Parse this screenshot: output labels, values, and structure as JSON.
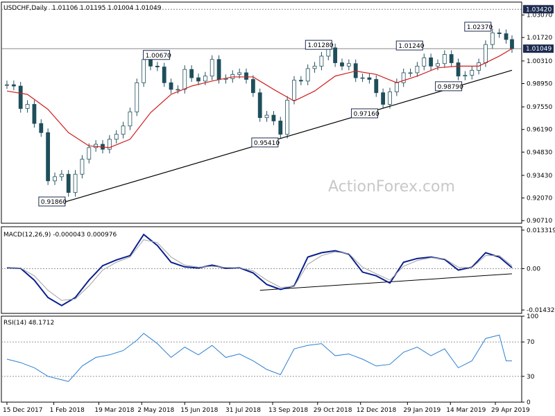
{
  "header": {
    "symbol": "USDCHF,Daily",
    "ohlc": "1.01106 1.01195 1.01004 1.01049",
    "watermark": "ActionForex.com"
  },
  "colors": {
    "candle": "#1f4e5b",
    "ma": "#d11e1e",
    "macd": "#0a1f8f",
    "signal": "#a0a0a0",
    "rsi": "#2a7fd4",
    "trend": "#000000",
    "grid": "#000000"
  },
  "chart_data": [
    {
      "type": "candlestick",
      "title": "USDCHF,Daily",
      "y_ticks": [
        "1.03070",
        "1.01720",
        "1.00310",
        "0.98950",
        "0.97550",
        "0.96190",
        "0.94830",
        "0.93430",
        "0.92070",
        "0.90710"
      ],
      "ylim": [
        0.9055,
        1.0385
      ],
      "reference_levels": [
        {
          "label": "1.03420",
          "value": 1.0342,
          "style": "dashed"
        },
        {
          "label": "1.01049",
          "value": 1.01049,
          "style": "current"
        }
      ],
      "annotations": [
        {
          "text": "0.91860",
          "date": "2018-02-14",
          "value": 0.9186
        },
        {
          "text": "1.00670",
          "date": "2018-06-01",
          "value": 1.0067
        },
        {
          "text": "0.95410",
          "date": "2018-09-20",
          "value": 0.9541
        },
        {
          "text": "1.01280",
          "date": "2018-11-14",
          "value": 1.0128
        },
        {
          "text": "0.97160",
          "date": "2018-12-31",
          "value": 0.9716
        },
        {
          "text": "1.01240",
          "date": "2019-02-15",
          "value": 1.0124
        },
        {
          "text": "0.98790",
          "date": "2019-03-27",
          "value": 0.9879
        },
        {
          "text": "1.02370",
          "date": "2019-04-26",
          "value": 1.0237
        }
      ],
      "trendline": [
        {
          "date": "2018-02-14",
          "value": 0.9186
        },
        {
          "date": "2019-05-16",
          "value": 0.9975
        }
      ],
      "close": [
        [
          "2017-12-15",
          0.9888
        ],
        [
          "2017-12-22",
          0.988
        ],
        [
          "2017-12-29",
          0.9745
        ],
        [
          "2018-01-05",
          0.977
        ],
        [
          "2018-01-12",
          0.9655
        ],
        [
          "2018-01-19",
          0.96
        ],
        [
          "2018-01-26",
          0.931
        ],
        [
          "2018-02-02",
          0.9335
        ],
        [
          "2018-02-09",
          0.935
        ],
        [
          "2018-02-16",
          0.924
        ],
        [
          "2018-02-23",
          0.935
        ],
        [
          "2018-03-02",
          0.944
        ],
        [
          "2018-03-09",
          0.951
        ],
        [
          "2018-03-16",
          0.953
        ],
        [
          "2018-03-23",
          0.95
        ],
        [
          "2018-03-30",
          0.956
        ],
        [
          "2018-04-06",
          0.959
        ],
        [
          "2018-04-13",
          0.964
        ],
        [
          "2018-04-20",
          0.9725
        ],
        [
          "2018-04-27",
          0.99
        ],
        [
          "2018-05-04",
          1.004
        ],
        [
          "2018-05-11",
          1.0
        ],
        [
          "2018-05-18",
          0.9995
        ],
        [
          "2018-05-25",
          0.99
        ],
        [
          "2018-06-01",
          0.986
        ],
        [
          "2018-06-08",
          0.986
        ],
        [
          "2018-06-15",
          0.998
        ],
        [
          "2018-06-22",
          0.993
        ],
        [
          "2018-06-29",
          0.991
        ],
        [
          "2018-07-06",
          0.994
        ],
        [
          "2018-07-13",
          1.004
        ],
        [
          "2018-07-20",
          0.992
        ],
        [
          "2018-07-27",
          0.9925
        ],
        [
          "2018-08-03",
          0.995
        ],
        [
          "2018-08-10",
          0.996
        ],
        [
          "2018-08-17",
          0.992
        ],
        [
          "2018-08-24",
          0.984
        ],
        [
          "2018-08-31",
          0.969
        ],
        [
          "2018-09-07",
          0.9705
        ],
        [
          "2018-09-14",
          0.967
        ],
        [
          "2018-09-21",
          0.959
        ],
        [
          "2018-09-28",
          0.9795
        ],
        [
          "2018-10-05",
          0.9915
        ],
        [
          "2018-10-12",
          0.991
        ],
        [
          "2018-10-19",
          0.9985
        ],
        [
          "2018-10-26",
          1.0
        ],
        [
          "2018-11-02",
          1.006
        ],
        [
          "2018-11-09",
          1.011
        ],
        [
          "2018-11-16",
          1.002
        ],
        [
          "2018-11-23",
          1.0
        ],
        [
          "2018-11-30",
          1.0015
        ],
        [
          "2018-12-07",
          0.993
        ],
        [
          "2018-12-14",
          0.993
        ],
        [
          "2018-12-21",
          0.992
        ],
        [
          "2018-12-28",
          0.984
        ],
        [
          "2019-01-04",
          0.977
        ],
        [
          "2019-01-11",
          0.9845
        ],
        [
          "2019-01-18",
          0.99
        ],
        [
          "2019-01-25",
          0.996
        ],
        [
          "2019-02-01",
          0.996
        ],
        [
          "2019-02-08",
          1.0
        ],
        [
          "2019-02-15",
          1.005
        ],
        [
          "2019-02-22",
          1.0
        ],
        [
          "2019-03-01",
          1.0015
        ],
        [
          "2019-03-08",
          1.007
        ],
        [
          "2019-03-15",
          1.002
        ],
        [
          "2019-03-22",
          0.994
        ],
        [
          "2019-03-29",
          0.9945
        ],
        [
          "2019-04-05",
          0.9975
        ],
        [
          "2019-04-12",
          1.002
        ],
        [
          "2019-04-19",
          1.013
        ],
        [
          "2019-04-26",
          1.02
        ],
        [
          "2019-05-03",
          1.0195
        ],
        [
          "2019-05-10",
          1.016
        ],
        [
          "2019-05-16",
          1.0105
        ]
      ],
      "ma": [
        [
          "2017-12-15",
          0.985
        ],
        [
          "2018-01-05",
          0.983
        ],
        [
          "2018-01-26",
          0.974
        ],
        [
          "2018-02-16",
          0.96
        ],
        [
          "2018-03-09",
          0.952
        ],
        [
          "2018-03-30",
          0.951
        ],
        [
          "2018-04-20",
          0.956
        ],
        [
          "2018-05-11",
          0.972
        ],
        [
          "2018-06-01",
          0.983
        ],
        [
          "2018-06-22",
          0.988
        ],
        [
          "2018-07-13",
          0.991
        ],
        [
          "2018-08-03",
          0.9935
        ],
        [
          "2018-08-24",
          0.9935
        ],
        [
          "2018-09-14",
          0.986
        ],
        [
          "2018-10-05",
          0.979
        ],
        [
          "2018-10-26",
          0.985
        ],
        [
          "2018-11-16",
          0.994
        ],
        [
          "2018-12-07",
          0.997
        ],
        [
          "2018-12-28",
          0.995
        ],
        [
          "2019-01-18",
          0.99
        ],
        [
          "2019-02-08",
          0.994
        ],
        [
          "2019-03-01",
          0.999
        ],
        [
          "2019-03-22",
          1.0
        ],
        [
          "2019-04-12",
          1.0
        ],
        [
          "2019-05-03",
          1.006
        ],
        [
          "2019-05-16",
          1.0105
        ]
      ]
    },
    {
      "type": "line",
      "title": "MACD(12,26,9) -0.000043 0.000976",
      "y_ticks": [
        "0.013319",
        "0.00",
        "-0.014323"
      ],
      "ylim": [
        -0.0155,
        0.0145
      ],
      "zero_line": 0,
      "trendline": [
        {
          "date": "2018-08-31",
          "value": -0.0075
        },
        {
          "date": "2019-05-16",
          "value": -0.0018
        }
      ],
      "series": [
        {
          "name": "MACD",
          "values": [
            [
              "2017-12-15",
              0.0003
            ],
            [
              "2017-12-29",
              0.0001
            ],
            [
              "2018-01-12",
              -0.004
            ],
            [
              "2018-01-26",
              -0.01
            ],
            [
              "2018-02-09",
              -0.0128
            ],
            [
              "2018-02-23",
              -0.01
            ],
            [
              "2018-03-09",
              -0.004
            ],
            [
              "2018-03-23",
              0.001
            ],
            [
              "2018-04-06",
              0.003
            ],
            [
              "2018-04-20",
              0.0045
            ],
            [
              "2018-05-04",
              0.0118
            ],
            [
              "2018-05-18",
              0.008
            ],
            [
              "2018-06-01",
              0.0022
            ],
            [
              "2018-06-15",
              0.0006
            ],
            [
              "2018-06-29",
              0.0002
            ],
            [
              "2018-07-13",
              0.0012
            ],
            [
              "2018-07-27",
              0.0001
            ],
            [
              "2018-08-10",
              0.0003
            ],
            [
              "2018-08-24",
              -0.0015
            ],
            [
              "2018-09-07",
              -0.0055
            ],
            [
              "2018-09-21",
              -0.0072
            ],
            [
              "2018-10-05",
              -0.006
            ],
            [
              "2018-10-19",
              0.004
            ],
            [
              "2018-11-02",
              0.0055
            ],
            [
              "2018-11-16",
              0.0062
            ],
            [
              "2018-11-30",
              0.005
            ],
            [
              "2018-12-14",
              -0.0012
            ],
            [
              "2018-12-28",
              -0.0025
            ],
            [
              "2019-01-11",
              -0.005
            ],
            [
              "2019-01-25",
              0.0022
            ],
            [
              "2019-02-08",
              0.0035
            ],
            [
              "2019-02-22",
              0.004
            ],
            [
              "2019-03-08",
              0.0032
            ],
            [
              "2019-03-22",
              -0.0005
            ],
            [
              "2019-04-05",
              0.0005
            ],
            [
              "2019-04-19",
              0.0055
            ],
            [
              "2019-05-03",
              0.004
            ],
            [
              "2019-05-16",
              0.0003
            ]
          ]
        },
        {
          "name": "Signal",
          "values": [
            [
              "2017-12-15",
              0.0004
            ],
            [
              "2017-12-29",
              0.0002
            ],
            [
              "2018-01-12",
              -0.0025
            ],
            [
              "2018-01-26",
              -0.0075
            ],
            [
              "2018-02-09",
              -0.011
            ],
            [
              "2018-02-23",
              -0.0105
            ],
            [
              "2018-03-09",
              -0.006
            ],
            [
              "2018-03-23",
              -0.0005
            ],
            [
              "2018-04-06",
              0.0022
            ],
            [
              "2018-04-20",
              0.004
            ],
            [
              "2018-05-04",
              0.01
            ],
            [
              "2018-05-18",
              0.009
            ],
            [
              "2018-06-01",
              0.004
            ],
            [
              "2018-06-15",
              0.0012
            ],
            [
              "2018-06-29",
              0.0005
            ],
            [
              "2018-07-13",
              0.0008
            ],
            [
              "2018-07-27",
              0.0004
            ],
            [
              "2018-08-10",
              0.0003
            ],
            [
              "2018-08-24",
              -0.0008
            ],
            [
              "2018-09-07",
              -0.004
            ],
            [
              "2018-09-21",
              -0.0065
            ],
            [
              "2018-10-05",
              -0.0062
            ],
            [
              "2018-10-19",
              0.0015
            ],
            [
              "2018-11-02",
              0.0045
            ],
            [
              "2018-11-16",
              0.0058
            ],
            [
              "2018-11-30",
              0.0052
            ],
            [
              "2018-12-14",
              0.0005
            ],
            [
              "2018-12-28",
              -0.0018
            ],
            [
              "2019-01-11",
              -0.004
            ],
            [
              "2019-01-25",
              0.0008
            ],
            [
              "2019-02-08",
              0.0028
            ],
            [
              "2019-02-22",
              0.0038
            ],
            [
              "2019-03-08",
              0.0034
            ],
            [
              "2019-03-22",
              0.0005
            ],
            [
              "2019-04-05",
              0.0003
            ],
            [
              "2019-04-19",
              0.0045
            ],
            [
              "2019-05-03",
              0.0045
            ],
            [
              "2019-05-16",
              0.001
            ]
          ]
        }
      ]
    },
    {
      "type": "line",
      "title": "RSI(14) 48.1712",
      "y_ticks": [
        "100",
        "70",
        "30",
        "0"
      ],
      "ylim": [
        0,
        100
      ],
      "levels": [
        70,
        30
      ],
      "series": [
        {
          "name": "RSI",
          "values": [
            [
              "2017-12-15",
              50
            ],
            [
              "2017-12-29",
              46
            ],
            [
              "2018-01-12",
              40
            ],
            [
              "2018-01-26",
              30
            ],
            [
              "2018-02-09",
              26
            ],
            [
              "2018-02-16",
              24
            ],
            [
              "2018-03-02",
              42
            ],
            [
              "2018-03-16",
              52
            ],
            [
              "2018-03-30",
              55
            ],
            [
              "2018-04-13",
              60
            ],
            [
              "2018-04-27",
              72
            ],
            [
              "2018-05-04",
              80
            ],
            [
              "2018-05-18",
              68
            ],
            [
              "2018-06-01",
              52
            ],
            [
              "2018-06-15",
              64
            ],
            [
              "2018-06-29",
              55
            ],
            [
              "2018-07-13",
              66
            ],
            [
              "2018-07-27",
              52
            ],
            [
              "2018-08-10",
              56
            ],
            [
              "2018-08-24",
              48
            ],
            [
              "2018-09-07",
              38
            ],
            [
              "2018-09-21",
              32
            ],
            [
              "2018-10-05",
              62
            ],
            [
              "2018-10-19",
              66
            ],
            [
              "2018-11-02",
              68
            ],
            [
              "2018-11-16",
              54
            ],
            [
              "2018-11-30",
              56
            ],
            [
              "2018-12-14",
              50
            ],
            [
              "2018-12-28",
              42
            ],
            [
              "2019-01-11",
              44
            ],
            [
              "2019-01-25",
              58
            ],
            [
              "2019-02-08",
              64
            ],
            [
              "2019-02-22",
              54
            ],
            [
              "2019-03-08",
              62
            ],
            [
              "2019-03-22",
              40
            ],
            [
              "2019-04-05",
              48
            ],
            [
              "2019-04-19",
              74
            ],
            [
              "2019-05-03",
              78
            ],
            [
              "2019-05-10",
              48
            ],
            [
              "2019-05-16",
              48
            ]
          ]
        }
      ]
    }
  ],
  "x_axis": {
    "labels": [
      "15 Dec 2017",
      "1 Feb 2018",
      "19 Mar 2018",
      "2 May 2018",
      "15 Jun 2018",
      "31 Jul 2018",
      "13 Sep 2018",
      "29 Oct 2018",
      "12 Dec 2018",
      "29 Jan 2019",
      "14 Mar 2019",
      "29 Apr 2019"
    ],
    "start": "2017-12-15",
    "end": "2019-05-16"
  }
}
